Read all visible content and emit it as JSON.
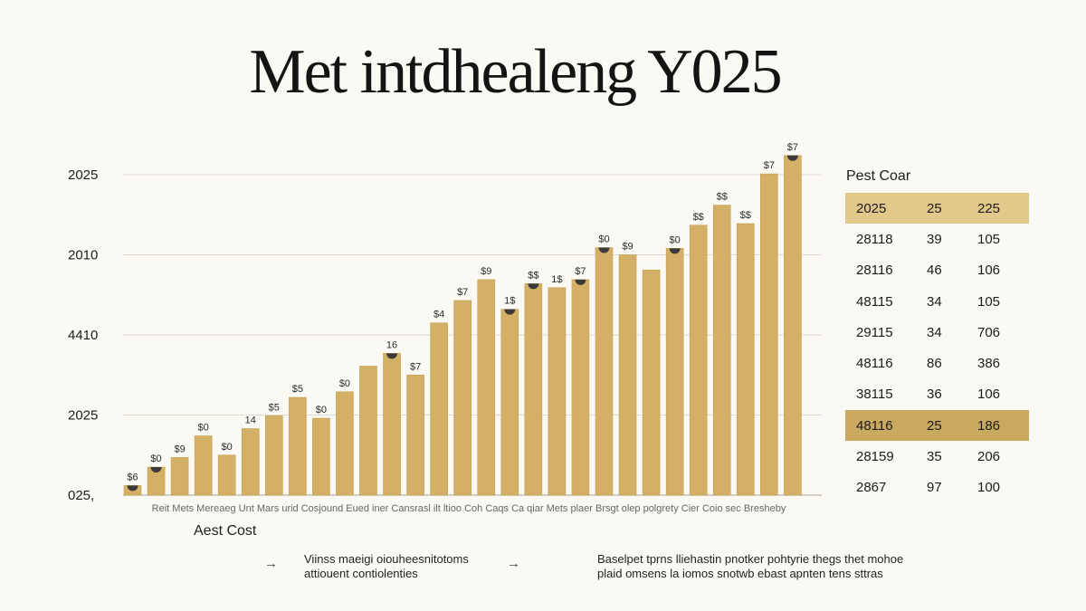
{
  "title": "Met intdhealeng Y025",
  "chart_data": {
    "type": "bar",
    "y_ticks": [
      {
        "label": "2025",
        "value": 4
      },
      {
        "label": "2010",
        "value": 3
      },
      {
        "label": "4410",
        "value": 2
      },
      {
        "label": "2025",
        "value": 1
      },
      {
        "label": "025,",
        "value": 0
      }
    ],
    "ylim": [
      0,
      4
    ],
    "xlabel": "Aest Cost",
    "x_category_text": "Reit Mets Mereaeg Unt Mars urid Cosjound Eued iner Cansrasl ilt ltioo Coh Caqs Ca qiar Mets plaer Brsgt olep polgrety Cier Coio sec Bresheby",
    "values": [
      0.12,
      0.35,
      0.47,
      0.74,
      0.5,
      0.83,
      0.99,
      1.22,
      0.96,
      1.29,
      1.61,
      1.77,
      1.5,
      2.15,
      2.43,
      2.69,
      2.32,
      2.64,
      2.59,
      2.69,
      3.09,
      3.0,
      2.81,
      3.08,
      3.37,
      3.62,
      3.39,
      4.01,
      4.24
    ],
    "value_labels": [
      "$6",
      "$0",
      "$9",
      "$0",
      "$0",
      "14",
      "$5",
      "$5",
      "$0",
      "$0",
      "",
      "16",
      "$7",
      "$4",
      "$7",
      "$9",
      "1$",
      "$$",
      "1$",
      "$7",
      "$0",
      "$9",
      "",
      "$0",
      "$$",
      "$$",
      "$$",
      "$7",
      "$7"
    ],
    "marked_bars": [
      0,
      1,
      11,
      16,
      17,
      19,
      20,
      23,
      28
    ],
    "colors": {
      "bar": "#d4b066",
      "bar_edge": "#c59f50",
      "marker": "#3a3a3a",
      "grid": "#dedad0",
      "axis": "#b9b4a8"
    }
  },
  "table": {
    "title": "Pest Coar",
    "rows": [
      [
        "2025",
        "25",
        "225"
      ],
      [
        "28118",
        "39",
        "105"
      ],
      [
        "28116",
        "46",
        "106"
      ],
      [
        "48115",
        "34",
        "105"
      ],
      [
        "29115",
        "34",
        "706"
      ],
      [
        "48116",
        "86",
        "386"
      ],
      [
        "38115",
        "36",
        "106"
      ],
      [
        "48116",
        "25",
        "186"
      ],
      [
        "28159",
        "35",
        "206"
      ],
      [
        "2867",
        "97",
        "100"
      ]
    ],
    "highlight_rows": {
      "0": "hl-light",
      "7": "hl-dark"
    }
  },
  "notes": {
    "left": "Viinss maeigi oiouheesnitotoms\nattiouent contiolenties",
    "right": "Baselpet tprns lliehastin pnotker pohtyrie thegs thet mohoe\nplaid omsens la iomos snotwb ebast apnten tens sttras"
  },
  "arrows": {
    "left": "→",
    "right": "→"
  }
}
